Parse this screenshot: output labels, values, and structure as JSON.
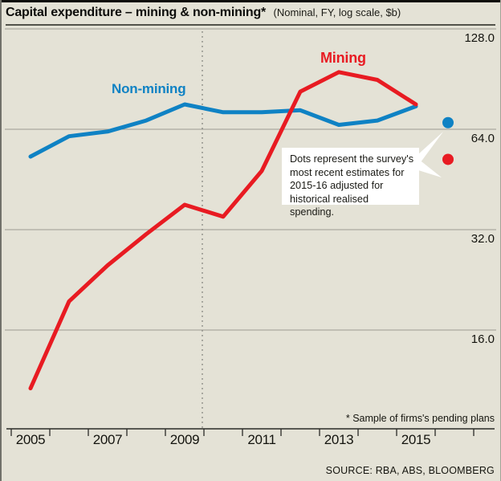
{
  "header": {
    "title": "Capital expenditure – mining & non-mining*",
    "subtitle": "(Nominal, FY, log scale, $b)"
  },
  "chart_data": {
    "type": "line",
    "categories": [
      "2005",
      "2006",
      "2007",
      "2008",
      "2009",
      "2010",
      "2011",
      "2012",
      "2013",
      "2014",
      "2015"
    ],
    "x_tick_labels": [
      "2005",
      "2007",
      "2009",
      "2011",
      "2013",
      "2015"
    ],
    "y_axis": {
      "scale": "log2",
      "ticks": [
        128,
        64,
        32,
        16
      ],
      "tick_labels": [
        "128.0",
        "64.0",
        "32.0",
        "16.0"
      ]
    },
    "series": [
      {
        "name": "Mining",
        "color": "#e81b22",
        "values": [
          10.7,
          19.5,
          25,
          31,
          38,
          35,
          48,
          83,
          95,
          90,
          76
        ]
      },
      {
        "name": "Non-mining",
        "color": "#0f82c4",
        "values": [
          53,
          61,
          63,
          68,
          76,
          72,
          72,
          73,
          66,
          68,
          75
        ]
      }
    ],
    "estimate_dots": {
      "period": "2015-16",
      "mining": 52,
      "non_mining": 67
    },
    "dashed_vline_between": "2009/2010",
    "grid": "horizontal",
    "legend_position": "inline-labels"
  },
  "annotations": {
    "non_mining_label": "Non-mining",
    "mining_label": "Mining",
    "callout_lines": [
      "Dots represent the survey's",
      "most recent estimates for",
      "2015-16 adjusted for",
      "historical realised spending."
    ]
  },
  "footnote": "* Sample of firms's pending plans",
  "source": "SOURCE: RBA, ABS, BLOOMBERG",
  "colors": {
    "background": "#e4e2d6",
    "mining": "#e81b22",
    "non_mining": "#0f82c4",
    "gridline": "#9b9b92",
    "axis": "#2a2a26",
    "dotted_line": "#8f8f88"
  }
}
